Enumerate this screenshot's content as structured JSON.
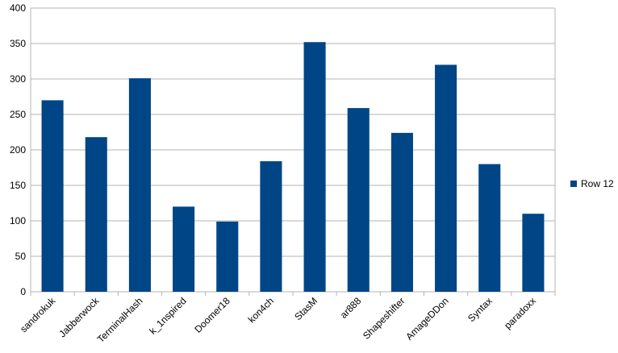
{
  "chart_data": {
    "type": "bar",
    "categories": [
      "sandrokuk",
      "Jabberwock",
      "TerminalHash",
      "k_1nspired",
      "Doomer18",
      "kon4ch",
      "StasM",
      "ar888",
      "Shapeshifter",
      "AmageDDon",
      "Syntax",
      "paradoxx"
    ],
    "series": [
      {
        "name": "Row 12",
        "color": "#004586",
        "values": [
          270,
          218,
          301,
          120,
          99,
          184,
          352,
          259,
          224,
          320,
          180,
          110
        ]
      }
    ],
    "ylim": [
      0,
      400
    ],
    "yticks": [
      0,
      50,
      100,
      150,
      200,
      250,
      300,
      350,
      400
    ],
    "grid": true,
    "legend": "right"
  }
}
